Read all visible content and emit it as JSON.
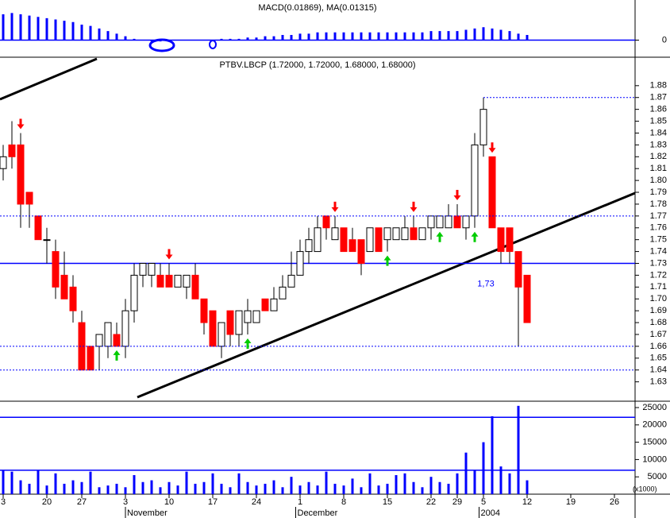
{
  "chart_data": [
    {
      "type": "bar",
      "title": "MACD(0.01869), MA(0.01315)",
      "color": "#0000ff",
      "values": [
        0.02,
        0.021,
        0.02,
        0.019,
        0.018,
        0.017,
        0.016,
        0.015,
        0.014,
        0.012,
        0.011,
        0.009,
        0.007,
        0.005,
        0.003,
        0.001,
        0,
        -0.001,
        -0.001,
        0,
        0,
        0,
        0,
        0,
        0,
        0.001,
        0.001,
        0.001,
        0.002,
        0.002,
        0.003,
        0.003,
        0.004,
        0.004,
        0.005,
        0.005,
        0.006,
        0.006,
        0.006,
        0.006,
        0.006,
        0.006,
        0.006,
        0.006,
        0.006,
        0.006,
        0.006,
        0.006,
        0.006,
        0.007,
        0.007,
        0.007,
        0.007,
        0.008,
        0.009,
        0.01,
        0.009,
        0.008,
        0.007,
        0.005,
        0.004
      ],
      "ylim": [
        -0.012,
        0.028
      ],
      "yticks": [
        0
      ],
      "hlines": [
        0
      ]
    },
    {
      "type": "candlestick",
      "title": "PTBV.LBCP (1.72000, 1.72000, 1.68000, 1.68000)",
      "x": [
        0,
        1,
        2,
        3,
        4,
        5,
        6,
        7,
        8,
        9,
        10,
        11,
        12,
        13,
        14,
        15,
        16,
        17,
        18,
        19,
        20,
        21,
        22,
        23,
        24,
        25,
        26,
        27,
        28,
        29,
        30,
        31,
        32,
        33,
        34,
        35,
        36,
        37,
        38,
        39,
        40,
        41,
        42,
        43,
        44,
        45,
        46,
        47,
        48,
        49,
        50,
        51,
        52,
        53,
        54,
        55,
        56,
        57,
        58,
        59,
        60
      ],
      "open": [
        1.81,
        1.83,
        1.83,
        1.79,
        1.77,
        1.75,
        1.74,
        1.72,
        1.71,
        1.68,
        1.66,
        1.66,
        1.66,
        1.67,
        1.66,
        1.69,
        1.72,
        1.72,
        1.72,
        1.72,
        1.71,
        1.71,
        1.72,
        1.7,
        1.69,
        1.66,
        1.69,
        1.67,
        1.68,
        1.68,
        1.7,
        1.69,
        1.7,
        1.71,
        1.72,
        1.74,
        1.74,
        1.77,
        1.75,
        1.76,
        1.75,
        1.75,
        1.74,
        1.76,
        1.75,
        1.75,
        1.75,
        1.76,
        1.75,
        1.76,
        1.76,
        1.76,
        1.77,
        1.76,
        1.77,
        1.83,
        1.82,
        1.76,
        1.76,
        1.74,
        1.72
      ],
      "high": [
        1.83,
        1.85,
        1.84,
        1.79,
        1.77,
        1.76,
        1.75,
        1.74,
        1.72,
        1.69,
        1.66,
        1.67,
        1.68,
        1.68,
        1.7,
        1.73,
        1.73,
        1.73,
        1.73,
        1.73,
        1.72,
        1.72,
        1.73,
        1.7,
        1.69,
        1.68,
        1.69,
        1.69,
        1.7,
        1.69,
        1.7,
        1.71,
        1.72,
        1.74,
        1.75,
        1.76,
        1.77,
        1.77,
        1.77,
        1.76,
        1.76,
        1.75,
        1.76,
        1.76,
        1.76,
        1.76,
        1.77,
        1.77,
        1.76,
        1.77,
        1.77,
        1.78,
        1.78,
        1.77,
        1.84,
        1.87,
        1.82,
        1.76,
        1.76,
        1.74,
        1.72
      ],
      "low": [
        1.8,
        1.81,
        1.76,
        1.76,
        1.75,
        1.73,
        1.7,
        1.7,
        1.68,
        1.64,
        1.64,
        1.64,
        1.65,
        1.66,
        1.65,
        1.68,
        1.71,
        1.71,
        1.71,
        1.71,
        1.71,
        1.7,
        1.7,
        1.67,
        1.66,
        1.65,
        1.66,
        1.66,
        1.67,
        1.68,
        1.69,
        1.69,
        1.7,
        1.71,
        1.72,
        1.73,
        1.74,
        1.75,
        1.75,
        1.74,
        1.74,
        1.72,
        1.74,
        1.74,
        1.74,
        1.75,
        1.75,
        1.75,
        1.75,
        1.75,
        1.76,
        1.76,
        1.76,
        1.75,
        1.76,
        1.82,
        1.76,
        1.73,
        1.73,
        1.66,
        1.68
      ],
      "close": [
        1.82,
        1.82,
        1.78,
        1.78,
        1.75,
        1.75,
        1.71,
        1.7,
        1.69,
        1.64,
        1.64,
        1.67,
        1.68,
        1.66,
        1.69,
        1.72,
        1.73,
        1.73,
        1.71,
        1.71,
        1.72,
        1.72,
        1.7,
        1.68,
        1.66,
        1.68,
        1.67,
        1.69,
        1.69,
        1.69,
        1.69,
        1.7,
        1.71,
        1.72,
        1.74,
        1.75,
        1.76,
        1.76,
        1.76,
        1.74,
        1.74,
        1.73,
        1.76,
        1.74,
        1.76,
        1.76,
        1.76,
        1.75,
        1.76,
        1.77,
        1.77,
        1.77,
        1.76,
        1.77,
        1.83,
        1.86,
        1.76,
        1.74,
        1.74,
        1.71,
        1.68
      ],
      "up_color": "#ffffff",
      "down_color": "#ff0000",
      "xlim": [
        0,
        72.5
      ],
      "xticks": [
        {
          "value": 0,
          "label": "3"
        },
        {
          "value": 5,
          "label": "20"
        },
        {
          "value": 9,
          "label": "27"
        },
        {
          "value": 14,
          "label": "3"
        },
        {
          "value": 19,
          "label": "10"
        },
        {
          "value": 24,
          "label": "17"
        },
        {
          "value": 29,
          "label": "24"
        },
        {
          "value": 34,
          "label": "1"
        },
        {
          "value": 39,
          "label": "8"
        },
        {
          "value": 44,
          "label": "15"
        },
        {
          "value": 49,
          "label": "22"
        },
        {
          "value": 52,
          "label": "29"
        },
        {
          "value": 55,
          "label": "5"
        },
        {
          "value": 60,
          "label": "12"
        },
        {
          "value": 65,
          "label": "19"
        },
        {
          "value": 70,
          "label": "26"
        }
      ],
      "month_labels": [
        {
          "value": 14,
          "label": "November"
        },
        {
          "value": 33.5,
          "label": "December"
        },
        {
          "value": 54.5,
          "label": "2004"
        }
      ],
      "ylim": [
        1.617,
        1.9
      ],
      "yticks": [
        1.63,
        1.64,
        1.65,
        1.66,
        1.67,
        1.68,
        1.69,
        {
          "value": 1.7,
          "label": "1.70"
        },
        1.71,
        1.72,
        1.73,
        1.74,
        1.75,
        1.76,
        1.77,
        1.78,
        1.79,
        {
          "value": 1.8,
          "label": "1.80"
        },
        1.81,
        1.82,
        1.83,
        1.84,
        1.85,
        1.86,
        1.87,
        1.88
      ],
      "hlines": [
        1.73
      ],
      "dotted_hlines": [
        1.87,
        1.77,
        1.66,
        1.64
      ],
      "annotation": "1,73",
      "sell_signals": [
        2,
        19,
        38,
        47,
        52,
        56
      ],
      "buy_signals": [
        13,
        28,
        44,
        50,
        54
      ]
    },
    {
      "type": "bar",
      "color": "#0000ff",
      "y_unit": "(x1000)",
      "values": [
        7000,
        6500,
        4000,
        3000,
        7000,
        2500,
        6000,
        3000,
        4000,
        3500,
        6500,
        2000,
        2500,
        3000,
        2000,
        5500,
        3500,
        4000,
        2000,
        3500,
        2500,
        6500,
        3000,
        3500,
        6000,
        3000,
        2000,
        6000,
        3500,
        2500,
        3000,
        4000,
        2000,
        5000,
        2500,
        3500,
        2500,
        6500,
        3000,
        2500,
        4500,
        2000,
        6000,
        2500,
        3000,
        5500,
        6000,
        3500,
        2000,
        5000,
        3500,
        3000,
        6000,
        12000,
        7000,
        15000,
        22500,
        8000,
        6000,
        25500,
        4000
      ],
      "ylim": [
        0,
        26150
      ],
      "yticks": [
        5000,
        10000,
        15000,
        20000,
        25000
      ],
      "hlines": [
        22200,
        6900
      ]
    }
  ]
}
